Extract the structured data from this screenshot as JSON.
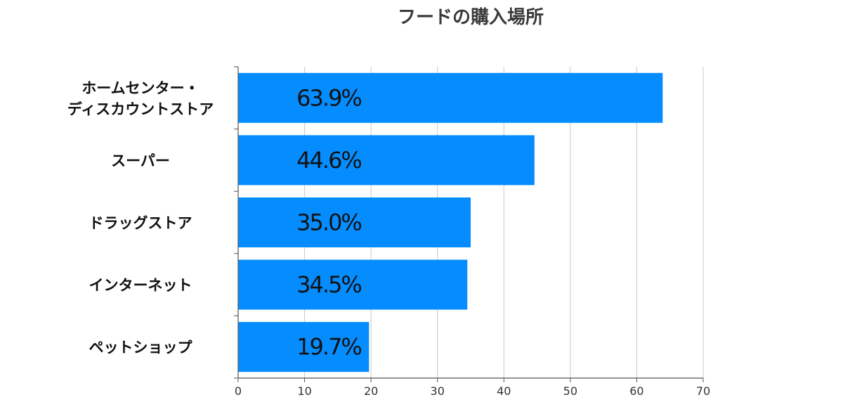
{
  "chart_data": {
    "type": "bar",
    "orientation": "horizontal",
    "title": "フードの購入場所",
    "categories": [
      [
        "ホームセンター・",
        "ディスカウントストア"
      ],
      [
        "スーパー"
      ],
      [
        "ドラッグストア"
      ],
      [
        "インターネット"
      ],
      [
        "ペットショップ"
      ]
    ],
    "values": [
      63.9,
      44.6,
      35.0,
      34.5,
      19.7
    ],
    "value_labels": [
      "63.9%",
      "44.6%",
      "35.0%",
      "34.5%",
      "19.7%"
    ],
    "xlim": [
      0,
      70
    ],
    "xticks": [
      0,
      10,
      20,
      30,
      40,
      50,
      60,
      70
    ],
    "grid": true,
    "bar_color": "#058dff"
  }
}
